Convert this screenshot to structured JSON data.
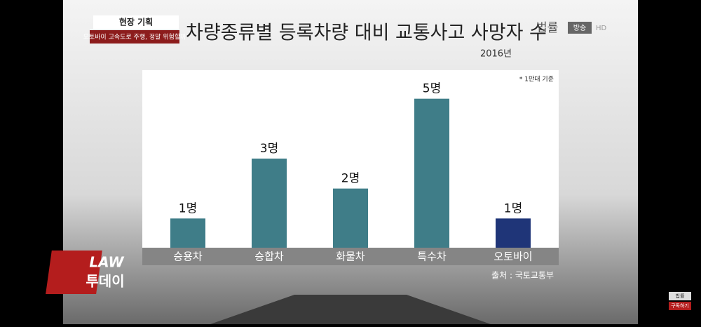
{
  "chart_data": {
    "type": "bar",
    "title": "차량종류별 등록차량 대비 교통사고 사망자 수",
    "subtitle": "2016년",
    "note": "* 1만대 기준",
    "source": "출처 : 국토교통부",
    "categories": [
      "승용차",
      "승합차",
      "화물차",
      "특수차",
      "오토바이"
    ],
    "values": [
      1,
      3,
      2,
      5,
      1
    ],
    "value_labels": [
      "1명",
      "3명",
      "2명",
      "5명",
      "1명"
    ],
    "colors": [
      "#3f7d88",
      "#3f7d88",
      "#3f7d88",
      "#3f7d88",
      "#1f3578"
    ],
    "ylim": [
      0,
      6
    ]
  },
  "overlay": {
    "segment": "현장 기획",
    "headline": "오토바이 고속도로 주행, 정말 위험할까",
    "channel": "법률",
    "channel_sub": "방송",
    "channel_hd": "HD",
    "show_top": "LAW",
    "show_bottom": "투데이",
    "sub_logo": "법률",
    "subscribe": "구독하기"
  }
}
